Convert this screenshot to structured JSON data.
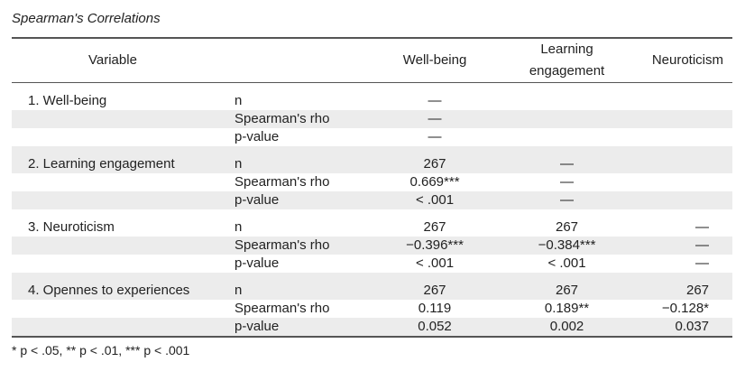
{
  "title": "Spearman's Correlations",
  "headers": {
    "variable": "Variable",
    "well_being": "Well-being",
    "learning_engagement": "Learning engagement",
    "neuroticism": "Neuroticism"
  },
  "groups": [
    {
      "label": "1. Well-being",
      "rows": [
        {
          "stat": "n",
          "wb": "—",
          "le": "",
          "ne": ""
        },
        {
          "stat": "Spearman's rho",
          "wb": "—",
          "le": "",
          "ne": ""
        },
        {
          "stat": "p-value",
          "wb": "—",
          "le": "",
          "ne": ""
        }
      ]
    },
    {
      "label": "2. Learning engagement",
      "rows": [
        {
          "stat": "n",
          "wb": "267",
          "le": "—",
          "ne": ""
        },
        {
          "stat": "Spearman's rho",
          "wb": "0.669***",
          "le": "—",
          "ne": ""
        },
        {
          "stat": "p-value",
          "wb": "< .001",
          "le": "—",
          "ne": ""
        }
      ]
    },
    {
      "label": "3. Neuroticism",
      "rows": [
        {
          "stat": "n",
          "wb": "267",
          "le": "267",
          "ne": "—"
        },
        {
          "stat": "Spearman's rho",
          "wb": "−0.396***",
          "le": "−0.384***",
          "ne": "—"
        },
        {
          "stat": "p-value",
          "wb": "< .001",
          "le": "< .001",
          "ne": "—"
        }
      ]
    },
    {
      "label": "4. Opennes to experiences",
      "rows": [
        {
          "stat": "n",
          "wb": "267",
          "le": "267",
          "ne": "267"
        },
        {
          "stat": "Spearman's rho",
          "wb": "0.119",
          "le": "0.189**",
          "ne": "−0.128*"
        },
        {
          "stat": "p-value",
          "wb": "0.052",
          "le": "0.002",
          "ne": "0.037"
        }
      ]
    }
  ],
  "footnote": "* p < .05, ** p < .01, *** p < .001"
}
